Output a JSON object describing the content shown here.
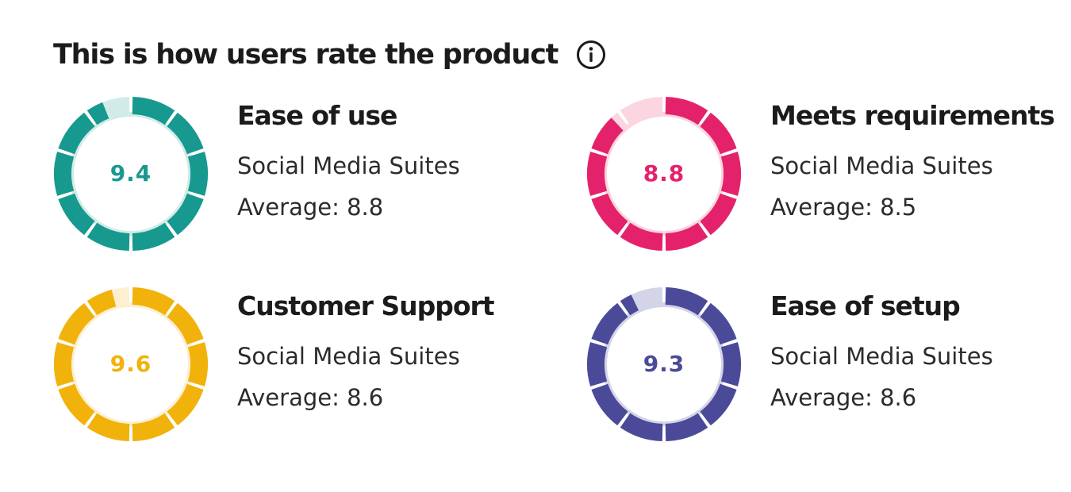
{
  "header": {
    "title": "This is how users rate the product",
    "info_icon": "info-icon"
  },
  "ratings": [
    {
      "id": "ease-of-use",
      "label": "Ease of use",
      "score": "9.4",
      "value": 9.4,
      "max": 10,
      "category": "Social Media Suites",
      "average": "Average: 8.8",
      "color": "#17998f",
      "track_color": "#d3ebe8"
    },
    {
      "id": "meets-requirements",
      "label": "Meets requirements",
      "score": "8.8",
      "value": 8.8,
      "max": 10,
      "category": "Social Media Suites",
      "average": "Average: 8.5",
      "color": "#e4226b",
      "track_color": "#fbd5df"
    },
    {
      "id": "customer-support",
      "label": "Customer Support",
      "score": "9.6",
      "value": 9.6,
      "max": 10,
      "category": "Social Media Suites",
      "average": "Average: 8.6",
      "color": "#f1b20c",
      "track_color": "#fdefd2"
    },
    {
      "id": "ease-of-setup",
      "label": "Ease of setup",
      "score": "9.3",
      "value": 9.3,
      "max": 10,
      "category": "Social Media Suites",
      "average": "Average: 8.6",
      "color": "#4b4a99",
      "track_color": "#d4d4e8"
    }
  ]
}
